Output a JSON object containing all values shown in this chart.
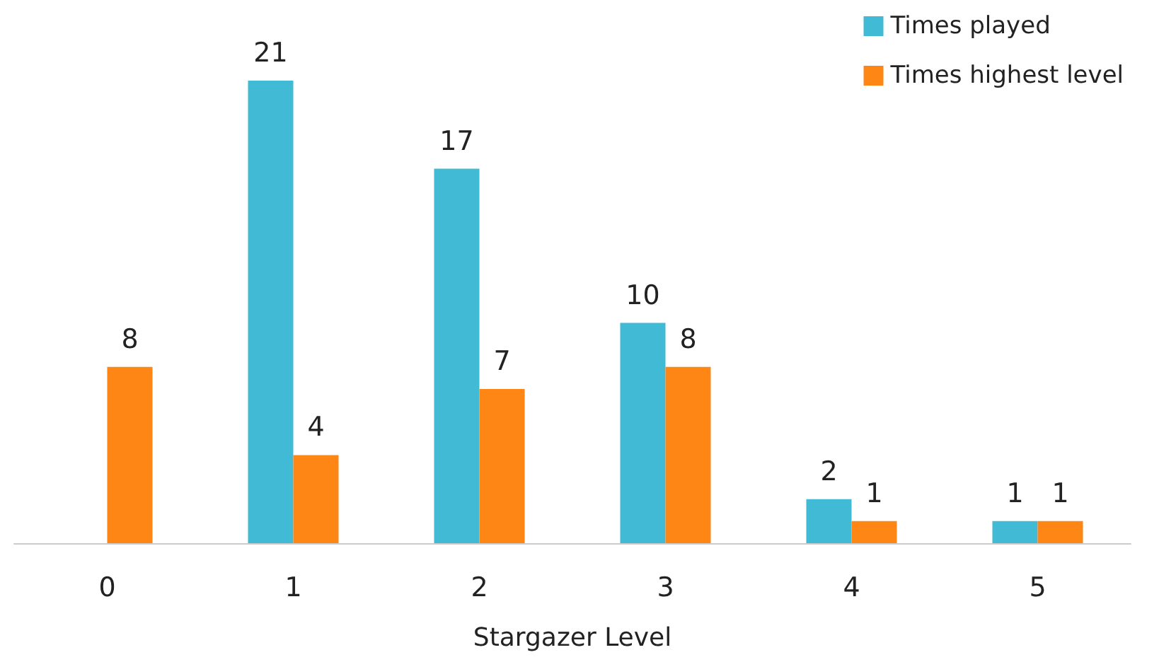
{
  "chart_data": {
    "type": "bar",
    "xlabel": "Stargazer Level",
    "categories": [
      "0",
      "1",
      "2",
      "3",
      "4",
      "5"
    ],
    "series": [
      {
        "name": "Times played",
        "color": "#41bad6",
        "values": [
          null,
          21,
          17,
          10,
          2,
          1
        ]
      },
      {
        "name": "Times highest level",
        "color": "#fd8614",
        "values": [
          8,
          4,
          7,
          8,
          1,
          1
        ]
      }
    ],
    "data_labels": true,
    "grid": false,
    "legend": "top right"
  }
}
